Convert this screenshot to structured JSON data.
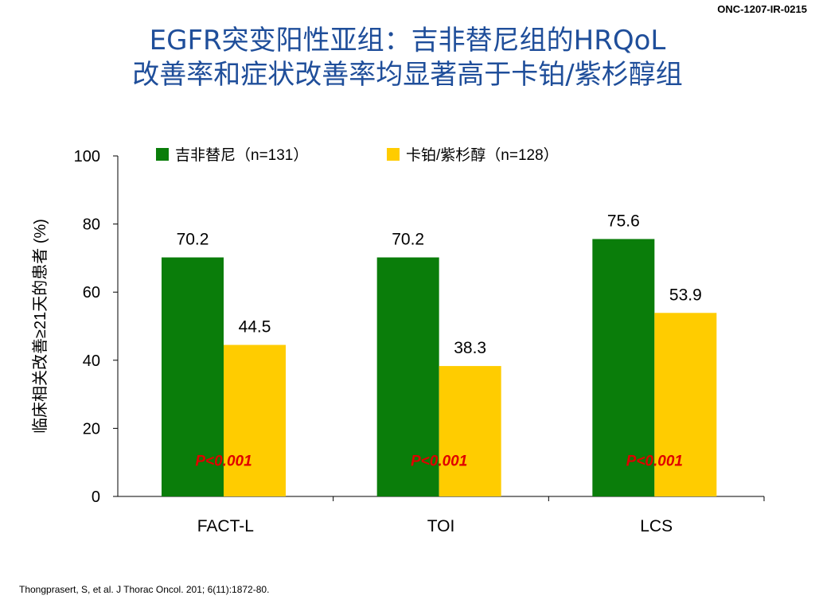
{
  "header": {
    "doc_code": "ONC-1207-IR-0215"
  },
  "title": {
    "line1": "EGFR突变阳性亚组：吉非替尼组的HRQoL",
    "line2": "改善率和症状改善率均显著高于卡铂/紫杉醇组"
  },
  "footer": {
    "reference": "Thongprasert, S, et al. J Thorac Oncol. 201; 6(11):1872-80."
  },
  "colors": {
    "series1": "#0a7d0a",
    "series2": "#ffcc00",
    "pvalue": "#e00000",
    "axis": "#000000"
  },
  "chart_data": {
    "type": "bar",
    "categories": [
      "FACT-L",
      "TOI",
      "LCS"
    ],
    "series": [
      {
        "name": "吉非替尼（n=131）",
        "values": [
          70.2,
          70.2,
          75.6
        ]
      },
      {
        "name": "卡铂/紫杉醇（n=128）",
        "values": [
          44.5,
          38.3,
          53.9
        ]
      }
    ],
    "ylabel": "临床相关改善≥21天的患者 (%)",
    "xlabel": "",
    "ylim": [
      0,
      100
    ],
    "yticks": [
      0,
      20,
      40,
      60,
      80,
      100
    ],
    "annotations": [
      "P<0.001",
      "P<0.001",
      "P<0.001"
    ],
    "legend": "top",
    "grid": false
  }
}
